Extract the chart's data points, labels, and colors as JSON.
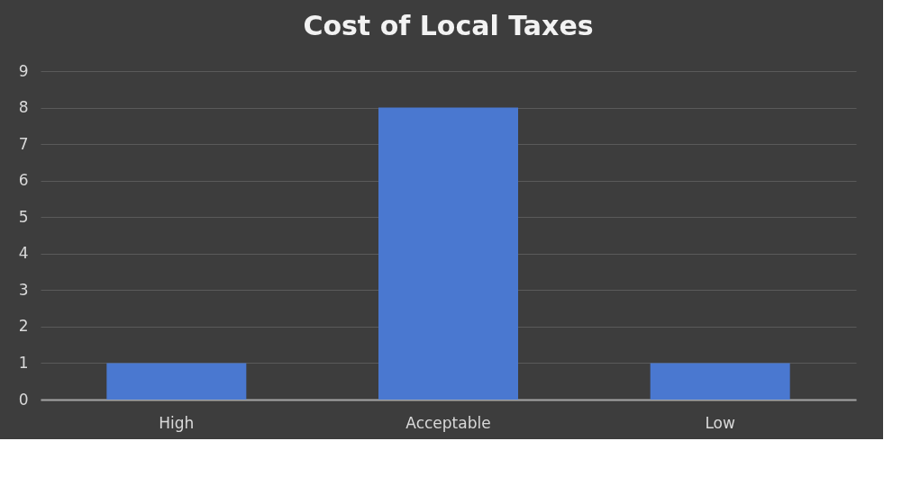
{
  "chart_data": {
    "type": "bar",
    "title": "Cost of Local Taxes",
    "categories": [
      "High",
      "Acceptable",
      "Low"
    ],
    "values": [
      1,
      8,
      1
    ],
    "color": "#4a78d0",
    "ylim": [
      0,
      9
    ],
    "yticks": [
      0,
      1,
      2,
      3,
      4,
      5,
      6,
      7,
      8,
      9
    ],
    "grid": "y"
  }
}
